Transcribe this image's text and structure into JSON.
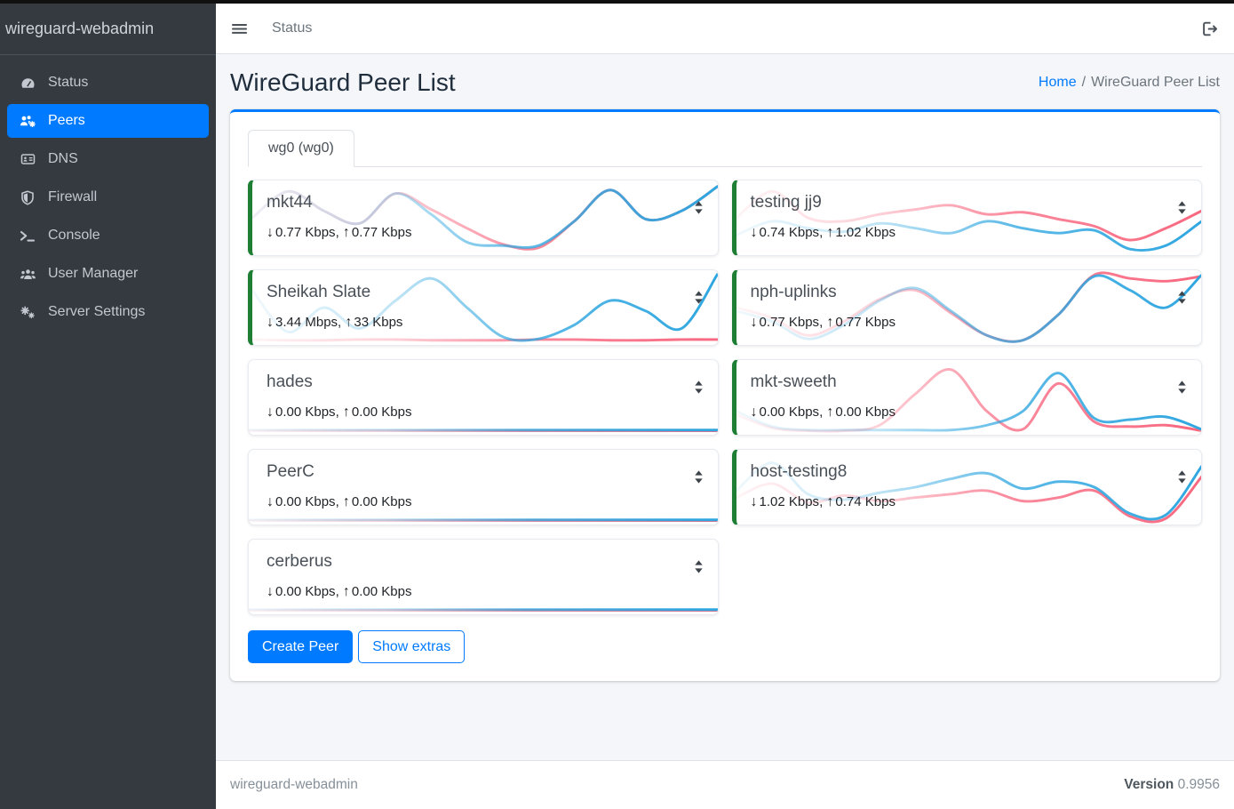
{
  "topbar": {
    "menu_link": "Status"
  },
  "sidebar": {
    "brand": "wireguard-webadmin",
    "items": [
      {
        "label": "Status",
        "active": false
      },
      {
        "label": "Peers",
        "active": true
      },
      {
        "label": "DNS",
        "active": false
      },
      {
        "label": "Firewall",
        "active": false
      },
      {
        "label": "Console",
        "active": false
      },
      {
        "label": "User Manager",
        "active": false
      },
      {
        "label": "Server Settings",
        "active": false
      }
    ]
  },
  "page": {
    "title": "WireGuard Peer List",
    "breadcrumb_home": "Home",
    "breadcrumb_sep": "/",
    "breadcrumb_current": "WireGuard Peer List"
  },
  "tabs": [
    {
      "label": "wg0 (wg0)",
      "active": true
    }
  ],
  "peers": [
    {
      "name": "mkt44",
      "down": "0.77 Kbps",
      "up": "0.77 Kbps",
      "online": true,
      "spark": {
        "rx": [
          0.5,
          0.88,
          0.6,
          0.42,
          0.85,
          0.55,
          0.15,
          0.1,
          0.1,
          0.45,
          0.9,
          0.48,
          0.6,
          0.95
        ],
        "tx": [
          0.5,
          0.88,
          0.6,
          0.42,
          0.85,
          0.62,
          0.35,
          0.12,
          0.07,
          0.45,
          0.9,
          0.48,
          0.6,
          0.95
        ]
      }
    },
    {
      "name": "testing jj9",
      "down": "0.74 Kbps",
      "up": "1.02 Kbps",
      "online": true,
      "spark": {
        "rx": [
          0.25,
          0.45,
          0.35,
          0.3,
          0.42,
          0.35,
          0.28,
          0.45,
          0.35,
          0.28,
          0.32,
          0.05,
          0.1,
          0.45
        ],
        "tx": [
          0.5,
          0.88,
          0.5,
          0.45,
          0.55,
          0.62,
          0.68,
          0.55,
          0.58,
          0.48,
          0.38,
          0.18,
          0.35,
          0.6
        ]
      }
    },
    {
      "name": "Sheikah Slate",
      "down": "3.44 Mbps",
      "up": "33 Kbps",
      "online": true,
      "spark": {
        "rx": [
          0.75,
          0.15,
          0.5,
          0.2,
          0.6,
          0.92,
          0.5,
          0.08,
          0.05,
          0.25,
          0.6,
          0.45,
          0.2,
          0.98
        ],
        "tx": [
          0.04,
          0.03,
          0.03,
          0.04,
          0.04,
          0.03,
          0.03,
          0.03,
          0.04,
          0.04,
          0.03,
          0.03,
          0.04,
          0.04
        ]
      }
    },
    {
      "name": "nph-uplinks",
      "down": "0.77 Kbps",
      "up": "0.77 Kbps",
      "online": true,
      "spark": {
        "rx": [
          0.45,
          0.3,
          0.05,
          0.25,
          0.6,
          0.78,
          0.45,
          0.1,
          0.03,
          0.4,
          0.95,
          0.75,
          0.5,
          0.97
        ],
        "tx": [
          0.5,
          0.35,
          0.1,
          0.3,
          0.62,
          0.75,
          0.42,
          0.1,
          0.03,
          0.4,
          0.97,
          0.92,
          0.88,
          0.95
        ]
      }
    },
    {
      "name": "hades",
      "down": "0.00 Kbps",
      "up": "0.00 Kbps",
      "online": false,
      "spark": {
        "rx": [
          0.03,
          0.03,
          0.03,
          0.03,
          0.03,
          0.03,
          0.03,
          0.03,
          0.03,
          0.03,
          0.03,
          0.03,
          0.03,
          0.03
        ],
        "tx": [
          0.02,
          0.02,
          0.02,
          0.02,
          0.02,
          0.02,
          0.02,
          0.02,
          0.02,
          0.02,
          0.02,
          0.02,
          0.02,
          0.02
        ]
      }
    },
    {
      "name": "mkt-sweeth",
      "down": "0.00 Kbps",
      "up": "0.00 Kbps",
      "online": true,
      "spark": {
        "rx": [
          0.3,
          0.08,
          0.03,
          0.03,
          0.03,
          0.03,
          0.03,
          0.1,
          0.3,
          0.85,
          0.2,
          0.18,
          0.22,
          0.04
        ],
        "tx": [
          0.25,
          0.06,
          0.02,
          0.02,
          0.1,
          0.55,
          0.9,
          0.3,
          0.04,
          0.7,
          0.15,
          0.08,
          0.1,
          0.02
        ]
      }
    },
    {
      "name": "PeerC",
      "down": "0.00 Kbps",
      "up": "0.00 Kbps",
      "online": false,
      "spark": {
        "rx": [
          0.03,
          0.03,
          0.03,
          0.03,
          0.03,
          0.03,
          0.03,
          0.03,
          0.03,
          0.03,
          0.03,
          0.03,
          0.03,
          0.03
        ],
        "tx": [
          0.02,
          0.02,
          0.02,
          0.02,
          0.02,
          0.02,
          0.02,
          0.02,
          0.02,
          0.02,
          0.02,
          0.02,
          0.02,
          0.02
        ]
      }
    },
    {
      "name": "host-testing8",
      "down": "1.02 Kbps",
      "up": "0.74 Kbps",
      "online": true,
      "spark": {
        "rx": [
          0.45,
          0.85,
          0.4,
          0.32,
          0.42,
          0.5,
          0.62,
          0.7,
          0.48,
          0.58,
          0.5,
          0.12,
          0.1,
          0.8
        ],
        "tx": [
          0.35,
          0.55,
          0.28,
          0.38,
          0.3,
          0.35,
          0.4,
          0.45,
          0.3,
          0.35,
          0.45,
          0.08,
          0.05,
          0.65
        ]
      }
    },
    {
      "name": "cerberus",
      "down": "0.00 Kbps",
      "up": "0.00 Kbps",
      "online": false,
      "spark": {
        "rx": [
          0.03,
          0.03,
          0.03,
          0.03,
          0.03,
          0.03,
          0.03,
          0.03,
          0.03,
          0.03,
          0.03,
          0.03,
          0.03,
          0.03
        ],
        "tx": [
          0.02,
          0.02,
          0.02,
          0.02,
          0.02,
          0.02,
          0.02,
          0.02,
          0.02,
          0.02,
          0.02,
          0.02,
          0.02,
          0.02
        ]
      }
    }
  ],
  "actions": {
    "create_peer": "Create Peer",
    "show_extras": "Show extras"
  },
  "footer": {
    "app_name": "wireguard-webadmin",
    "version_label": "Version",
    "version_value": "0.9956"
  },
  "colors": {
    "accent": "#007bff",
    "online_border": "#1e7e34",
    "spark_download": "#2ea6e0",
    "spark_upload": "#f8677f",
    "sidebar_bg": "#343a40"
  }
}
